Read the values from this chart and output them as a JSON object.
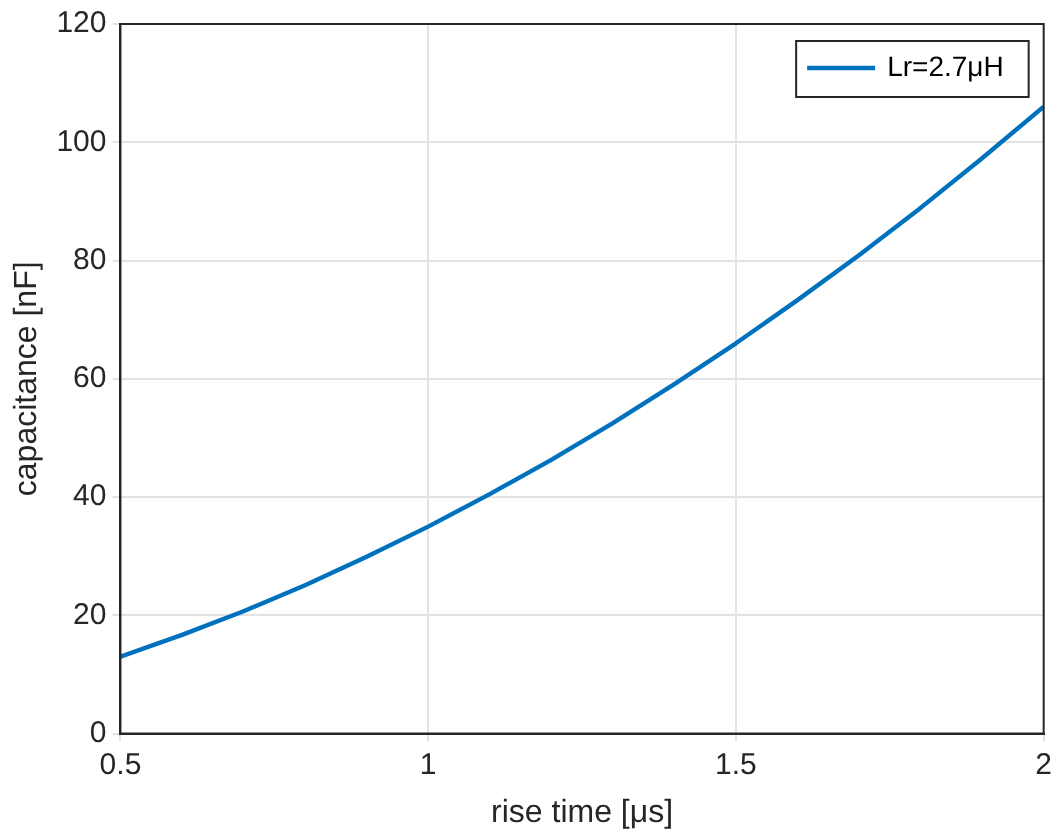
{
  "chart_data": {
    "type": "line",
    "xlabel": "rise time [μs]",
    "ylabel": "capacitance [nF]",
    "x": [
      0.5,
      0.6,
      0.7,
      0.8,
      0.9,
      1.0,
      1.1,
      1.2,
      1.3,
      1.4,
      1.5,
      1.6,
      1.7,
      1.8,
      1.9,
      2.0
    ],
    "series": [
      {
        "name": "Lr=2.7μH",
        "color": "#0072bd",
        "values": [
          13,
          16.7,
          20.7,
          25.1,
          29.9,
          35,
          40.5,
          46.3,
          52.5,
          59.1,
          66,
          73.3,
          80.9,
          88.9,
          97.3,
          106
        ]
      }
    ],
    "xlim": [
      0.5,
      2
    ],
    "xticks": [
      0.5,
      1,
      1.5,
      2
    ],
    "ylim": [
      0,
      120
    ],
    "yticks": [
      0,
      20,
      40,
      60,
      80,
      100,
      120
    ],
    "grid": true,
    "legend": "top right",
    "marker": "none",
    "line_style": "solid"
  }
}
